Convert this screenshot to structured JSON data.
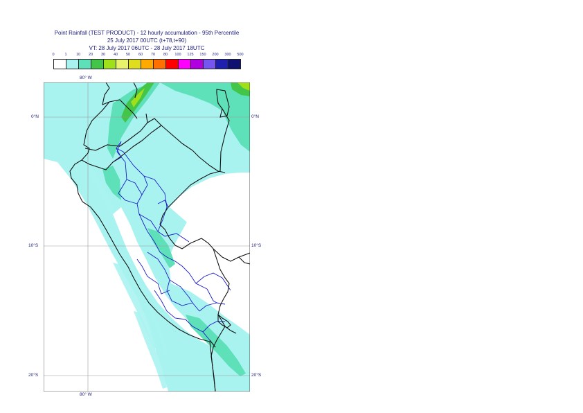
{
  "title": {
    "line1": "Point Rainfall (TEST PRODUCT) - 12 hourly accumulation - 95th Percentile",
    "line2": "25 July 2017 00UTC (t+78,t+90)",
    "line3": "VT: 28 July 2017 06UTC - 28 July 2017 18UTC"
  },
  "legend": {
    "thresholds": [
      "0",
      "1",
      "10",
      "20",
      "30",
      "40",
      "50",
      "60",
      "70",
      "80",
      "100",
      "125",
      "150",
      "200",
      "300",
      "500"
    ],
    "colors": [
      "#ffffff",
      "#a8f3f0",
      "#5ee0b8",
      "#43c54a",
      "#a0e01a",
      "#e8f26a",
      "#dede1e",
      "#ffaa00",
      "#ff7000",
      "#ff0000",
      "#ff00ff",
      "#b000e0",
      "#7755f0",
      "#2020b0",
      "#101070"
    ]
  },
  "axes": {
    "lon_top": "80° W",
    "lon_bottom": "80° W",
    "lat_left": [
      "0°N",
      "10°S",
      "20°S"
    ],
    "lat_right": [
      "0°N",
      "10°S",
      "20°S"
    ]
  }
}
